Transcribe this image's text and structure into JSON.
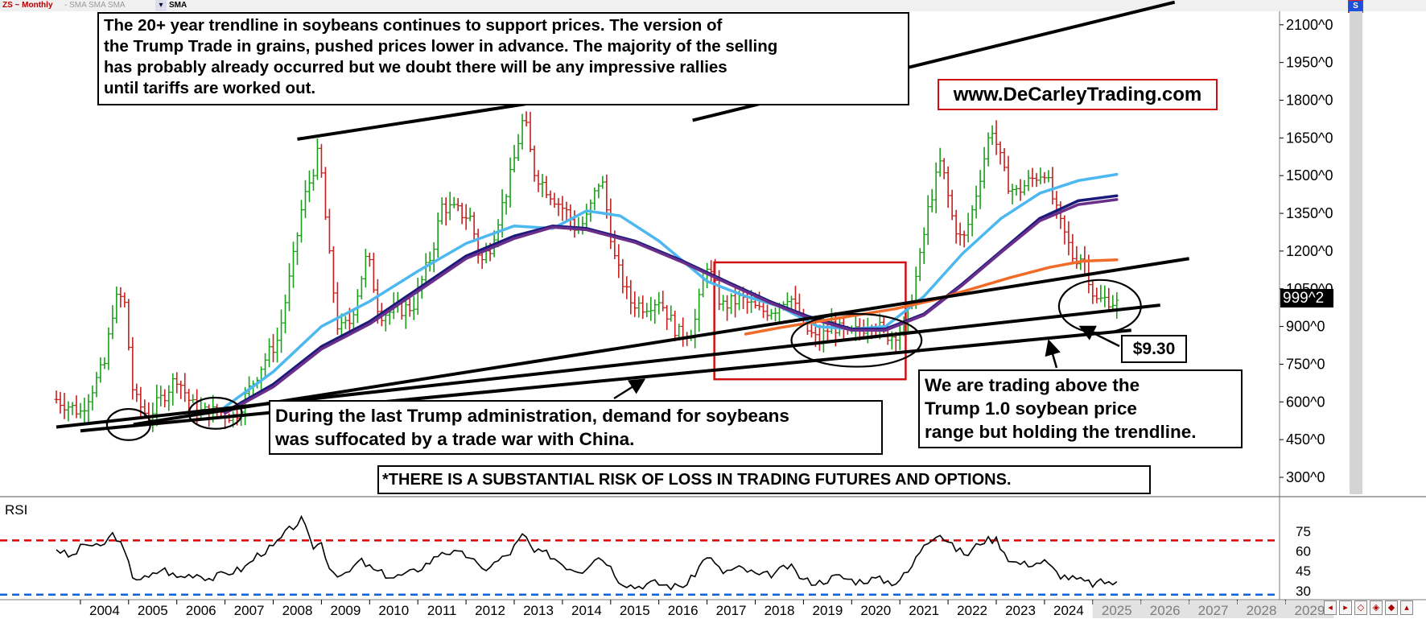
{
  "toolbar": {
    "symbol": "ZS ~ Monthly",
    "study_tabs": "- SMA SMA SMA",
    "study_active": "SMA",
    "corner_icon": "S"
  },
  "annotations": {
    "top_note": [
      "The 20+ year trendline in soybeans continues to support prices. The version of",
      "the Trump Trade in grains, pushed prices lower in advance. The majority of the selling",
      "has probably already occurred but we doubt there will be any impressive rallies",
      "until tariffs are worked out."
    ],
    "website": "www.DeCarleyTrading.com",
    "trump_note": [
      "During the last Trump administration, demand for soybeans",
      "was suffocated by a trade war with China."
    ],
    "right_note": [
      "We are trading above the",
      "Trump 1.0 soybean price",
      "range but holding the trendline."
    ],
    "price_callout": "$9.30",
    "disclaimer": "*THERE IS A SUBSTANTIAL RISK OF LOSS IN TRADING FUTURES AND OPTIONS.",
    "last_price": "999^2"
  },
  "colors": {
    "bar_up": "#19a019",
    "bar_down": "#c81e1e",
    "sma_light": "#4db8f0",
    "sma_navy": "#1a1a7a",
    "sma_purple": "#6a2f8a",
    "sma_orange": "#f06a28",
    "highlight_box": "#d01010",
    "rsi_upper": "#e00000",
    "rsi_lower": "#1060e0",
    "scrollbar": "#d4d4d4"
  },
  "chart_data": {
    "type": "ohlc",
    "title": "ZS ~ Monthly",
    "price_axis": {
      "ticks": [
        "300^0",
        "450^0",
        "600^0",
        "750^0",
        "900^0",
        "1050^0",
        "1200^0",
        "1350^0",
        "1500^0",
        "1650^0",
        "1800^0",
        "1950^0",
        "2100^0"
      ],
      "range": [
        250,
        2180
      ]
    },
    "x_axis": {
      "ticks": [
        "2004",
        "2005",
        "2006",
        "2007",
        "2008",
        "2009",
        "2010",
        "2011",
        "2012",
        "2013",
        "2014",
        "2015",
        "2016",
        "2017",
        "2018",
        "2019",
        "2020",
        "2021",
        "2022",
        "2023",
        "2024",
        "2025",
        "2026",
        "2027",
        "2028",
        "2029"
      ],
      "range": [
        2003.0,
        2030.3
      ]
    },
    "price_anchors": [
      [
        2003.0,
        610
      ],
      [
        2003.5,
        560
      ],
      [
        2004.0,
        750
      ],
      [
        2004.2,
        1000
      ],
      [
        2004.4,
        1020
      ],
      [
        2004.6,
        620
      ],
      [
        2004.9,
        540
      ],
      [
        2005.2,
        620
      ],
      [
        2005.5,
        700
      ],
      [
        2005.8,
        590
      ],
      [
        2006.0,
        560
      ],
      [
        2006.4,
        560
      ],
      [
        2006.7,
        540
      ],
      [
        2007.0,
        650
      ],
      [
        2007.3,
        760
      ],
      [
        2007.6,
        850
      ],
      [
        2007.9,
        1150
      ],
      [
        2008.1,
        1380
      ],
      [
        2008.45,
        1600
      ],
      [
        2008.65,
        1200
      ],
      [
        2008.85,
        880
      ],
      [
        2009.1,
        920
      ],
      [
        2009.45,
        1190
      ],
      [
        2009.7,
        950
      ],
      [
        2010.0,
        960
      ],
      [
        2010.4,
        980
      ],
      [
        2010.8,
        1200
      ],
      [
        2011.0,
        1380
      ],
      [
        2011.3,
        1360
      ],
      [
        2011.6,
        1330
      ],
      [
        2011.8,
        1150
      ],
      [
        2012.0,
        1220
      ],
      [
        2012.4,
        1480
      ],
      [
        2012.7,
        1740
      ],
      [
        2012.9,
        1520
      ],
      [
        2013.2,
        1440
      ],
      [
        2013.6,
        1350
      ],
      [
        2013.8,
        1280
      ],
      [
        2014.0,
        1330
      ],
      [
        2014.3,
        1500
      ],
      [
        2014.6,
        1150
      ],
      [
        2014.9,
        1000
      ],
      [
        2015.2,
        980
      ],
      [
        2015.5,
        1010
      ],
      [
        2015.9,
        870
      ],
      [
        2016.2,
        880
      ],
      [
        2016.5,
        1150
      ],
      [
        2016.8,
        980
      ],
      [
        2017.2,
        1010
      ],
      [
        2017.6,
        960
      ],
      [
        2017.9,
        970
      ],
      [
        2018.2,
        1030
      ],
      [
        2018.5,
        900
      ],
      [
        2018.8,
        840
      ],
      [
        2019.1,
        910
      ],
      [
        2019.4,
        860
      ],
      [
        2019.7,
        890
      ],
      [
        2019.9,
        920
      ],
      [
        2020.3,
        860
      ],
      [
        2020.6,
        900
      ],
      [
        2020.9,
        1150
      ],
      [
        2021.1,
        1380
      ],
      [
        2021.35,
        1560
      ],
      [
        2021.6,
        1320
      ],
      [
        2021.8,
        1230
      ],
      [
        2022.0,
        1360
      ],
      [
        2022.4,
        1700
      ],
      [
        2022.7,
        1480
      ],
      [
        2022.9,
        1430
      ],
      [
        2023.2,
        1480
      ],
      [
        2023.5,
        1520
      ],
      [
        2023.8,
        1320
      ],
      [
        2023.95,
        1250
      ],
      [
        2024.1,
        1170
      ],
      [
        2024.3,
        1180
      ],
      [
        2024.55,
        1000
      ],
      [
        2024.8,
        1010
      ],
      [
        2025.0,
        990
      ]
    ],
    "sma_series": [
      {
        "color_key": "sma_light",
        "points": [
          [
            2006.5,
            580
          ],
          [
            2007.5,
            720
          ],
          [
            2008.5,
            900
          ],
          [
            2009.5,
            1000
          ],
          [
            2010.5,
            1120
          ],
          [
            2011.5,
            1230
          ],
          [
            2012.5,
            1300
          ],
          [
            2013.3,
            1290
          ],
          [
            2014.0,
            1360
          ],
          [
            2014.7,
            1340
          ],
          [
            2015.5,
            1240
          ],
          [
            2016.5,
            1080
          ],
          [
            2017.3,
            1020
          ],
          [
            2018.0,
            980
          ],
          [
            2018.8,
            900
          ],
          [
            2019.5,
            890
          ],
          [
            2020.2,
            900
          ],
          [
            2021.0,
            1020
          ],
          [
            2021.8,
            1190
          ],
          [
            2022.6,
            1330
          ],
          [
            2023.4,
            1430
          ],
          [
            2024.2,
            1480
          ],
          [
            2025.0,
            1505
          ]
        ]
      },
      {
        "color_key": "sma_navy",
        "points": [
          [
            2006.5,
            560
          ],
          [
            2007.5,
            670
          ],
          [
            2008.5,
            820
          ],
          [
            2009.5,
            920
          ],
          [
            2010.5,
            1050
          ],
          [
            2011.5,
            1180
          ],
          [
            2012.5,
            1260
          ],
          [
            2013.3,
            1300
          ],
          [
            2014.0,
            1290
          ],
          [
            2015.0,
            1240
          ],
          [
            2016.0,
            1160
          ],
          [
            2017.0,
            1070
          ],
          [
            2017.8,
            1000
          ],
          [
            2018.6,
            940
          ],
          [
            2019.5,
            890
          ],
          [
            2020.2,
            890
          ],
          [
            2021.0,
            950
          ],
          [
            2021.8,
            1070
          ],
          [
            2022.6,
            1200
          ],
          [
            2023.4,
            1330
          ],
          [
            2024.2,
            1400
          ],
          [
            2025.0,
            1420
          ]
        ]
      },
      {
        "color_key": "sma_purple",
        "points": [
          [
            2006.5,
            555
          ],
          [
            2007.5,
            660
          ],
          [
            2008.5,
            810
          ],
          [
            2009.5,
            910
          ],
          [
            2010.5,
            1040
          ],
          [
            2011.5,
            1170
          ],
          [
            2012.5,
            1250
          ],
          [
            2013.3,
            1295
          ],
          [
            2014.0,
            1285
          ],
          [
            2015.0,
            1235
          ],
          [
            2016.0,
            1155
          ],
          [
            2017.0,
            1065
          ],
          [
            2017.8,
            995
          ],
          [
            2018.6,
            935
          ],
          [
            2019.5,
            885
          ],
          [
            2020.2,
            885
          ],
          [
            2021.0,
            945
          ],
          [
            2021.8,
            1065
          ],
          [
            2022.6,
            1195
          ],
          [
            2023.4,
            1320
          ],
          [
            2024.2,
            1385
          ],
          [
            2025.0,
            1405
          ]
        ]
      },
      {
        "color_key": "sma_orange",
        "points": [
          [
            2017.3,
            870
          ],
          [
            2018.0,
            895
          ],
          [
            2018.8,
            920
          ],
          [
            2019.6,
            945
          ],
          [
            2020.4,
            970
          ],
          [
            2021.2,
            1005
          ],
          [
            2022.0,
            1050
          ],
          [
            2022.8,
            1095
          ],
          [
            2023.6,
            1135
          ],
          [
            2024.3,
            1160
          ],
          [
            2025.0,
            1165
          ]
        ]
      }
    ],
    "trendlines": [
      {
        "from": [
          2003.0,
          500
        ],
        "to": [
          2025.9,
          985
        ]
      },
      {
        "from": [
          2003.5,
          485
        ],
        "to": [
          2025.3,
          885
        ]
      },
      {
        "from": [
          2004.6,
          510
        ],
        "to": [
          2026.5,
          1170
        ]
      },
      {
        "from": [
          2008.0,
          1645
        ],
        "to": [
          2012.9,
          1790
        ]
      },
      {
        "from": [
          2016.2,
          1720
        ],
        "to": [
          2026.2,
          2190
        ]
      }
    ],
    "highlight_box": {
      "x": [
        2016.65,
        2020.62
      ],
      "y": [
        690,
        1155
      ]
    },
    "circles": [
      {
        "center": [
          2004.5,
          510
        ],
        "radius": [
          0.45,
          62
        ]
      },
      {
        "center": [
          2006.3,
          555
        ],
        "radius": [
          0.55,
          62
        ]
      },
      {
        "center": [
          2019.6,
          845
        ],
        "radius": [
          1.35,
          105
        ]
      },
      {
        "center": [
          2024.65,
          980
        ],
        "radius": [
          0.85,
          105
        ]
      }
    ],
    "rsi": {
      "label": "RSI",
      "ticks": [
        "30",
        "45",
        "60",
        "75"
      ],
      "range": [
        25,
        92
      ],
      "upper_line": 68,
      "lower_line": 27,
      "anchors": [
        [
          2003.0,
          62
        ],
        [
          2003.3,
          55
        ],
        [
          2003.6,
          66
        ],
        [
          2003.9,
          62
        ],
        [
          2004.2,
          74
        ],
        [
          2004.4,
          60
        ],
        [
          2004.6,
          40
        ],
        [
          2004.9,
          39
        ],
        [
          2005.2,
          47
        ],
        [
          2005.5,
          40
        ],
        [
          2005.9,
          43
        ],
        [
          2006.2,
          39
        ],
        [
          2006.5,
          43
        ],
        [
          2006.9,
          47
        ],
        [
          2007.2,
          58
        ],
        [
          2007.5,
          63
        ],
        [
          2007.8,
          75
        ],
        [
          2008.1,
          84
        ],
        [
          2008.3,
          63
        ],
        [
          2008.5,
          66
        ],
        [
          2008.7,
          45
        ],
        [
          2009.0,
          41
        ],
        [
          2009.3,
          53
        ],
        [
          2009.6,
          45
        ],
        [
          2010.0,
          40
        ],
        [
          2010.4,
          44
        ],
        [
          2010.8,
          53
        ],
        [
          2011.0,
          60
        ],
        [
          2011.3,
          58
        ],
        [
          2011.6,
          56
        ],
        [
          2011.8,
          45
        ],
        [
          2012.1,
          51
        ],
        [
          2012.4,
          58
        ],
        [
          2012.7,
          73
        ],
        [
          2012.9,
          59
        ],
        [
          2013.2,
          58
        ],
        [
          2013.6,
          48
        ],
        [
          2013.9,
          45
        ],
        [
          2014.2,
          56
        ],
        [
          2014.4,
          53
        ],
        [
          2014.7,
          37
        ],
        [
          2015.0,
          33
        ],
        [
          2015.4,
          36
        ],
        [
          2015.8,
          33
        ],
        [
          2016.1,
          35
        ],
        [
          2016.5,
          57
        ],
        [
          2016.8,
          44
        ],
        [
          2017.2,
          47
        ],
        [
          2017.6,
          41
        ],
        [
          2017.9,
          43
        ],
        [
          2018.2,
          49
        ],
        [
          2018.5,
          38
        ],
        [
          2018.8,
          36
        ],
        [
          2019.2,
          41
        ],
        [
          2019.6,
          37
        ],
        [
          2020.0,
          39
        ],
        [
          2020.4,
          36
        ],
        [
          2020.7,
          45
        ],
        [
          2021.0,
          66
        ],
        [
          2021.3,
          74
        ],
        [
          2021.6,
          63
        ],
        [
          2021.9,
          57
        ],
        [
          2022.2,
          68
        ],
        [
          2022.5,
          69
        ],
        [
          2022.8,
          52
        ],
        [
          2023.1,
          50
        ],
        [
          2023.5,
          52
        ],
        [
          2023.8,
          42
        ],
        [
          2024.1,
          39
        ],
        [
          2024.5,
          35
        ],
        [
          2024.8,
          37
        ],
        [
          2025.0,
          35
        ]
      ]
    }
  }
}
